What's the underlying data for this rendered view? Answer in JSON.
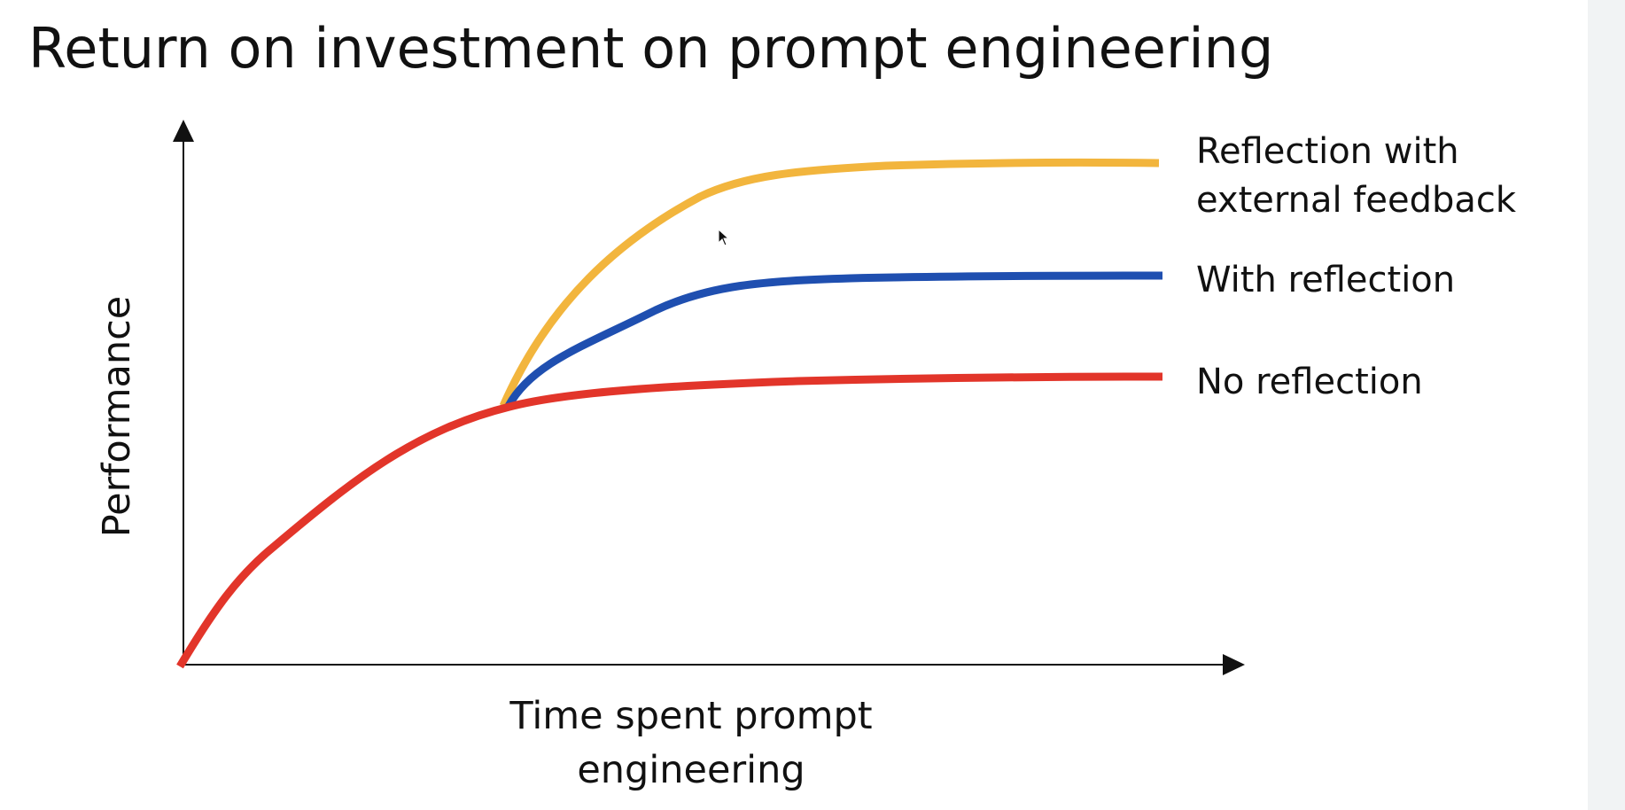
{
  "slide": {
    "title": "Return on investment on prompt engineering"
  },
  "diagram": {
    "y_axis_label": "Performance",
    "x_axis_label_lines": [
      "Time spent prompt",
      "engineering"
    ],
    "series": [
      {
        "id": "external",
        "label_lines": [
          "Reflection with",
          "external feedback"
        ],
        "color": "#f2b53d"
      },
      {
        "id": "reflection",
        "label_lines": [
          "With reflection"
        ],
        "color": "#1f4fb0"
      },
      {
        "id": "none",
        "label_lines": [
          "No reflection"
        ],
        "color": "#e2352a"
      }
    ]
  },
  "icons": {
    "cursor": "mouse-pointer-icon"
  },
  "colors": {
    "background": "#ffffff",
    "axis": "#111111",
    "side_panel": "#f1f3f4"
  }
}
